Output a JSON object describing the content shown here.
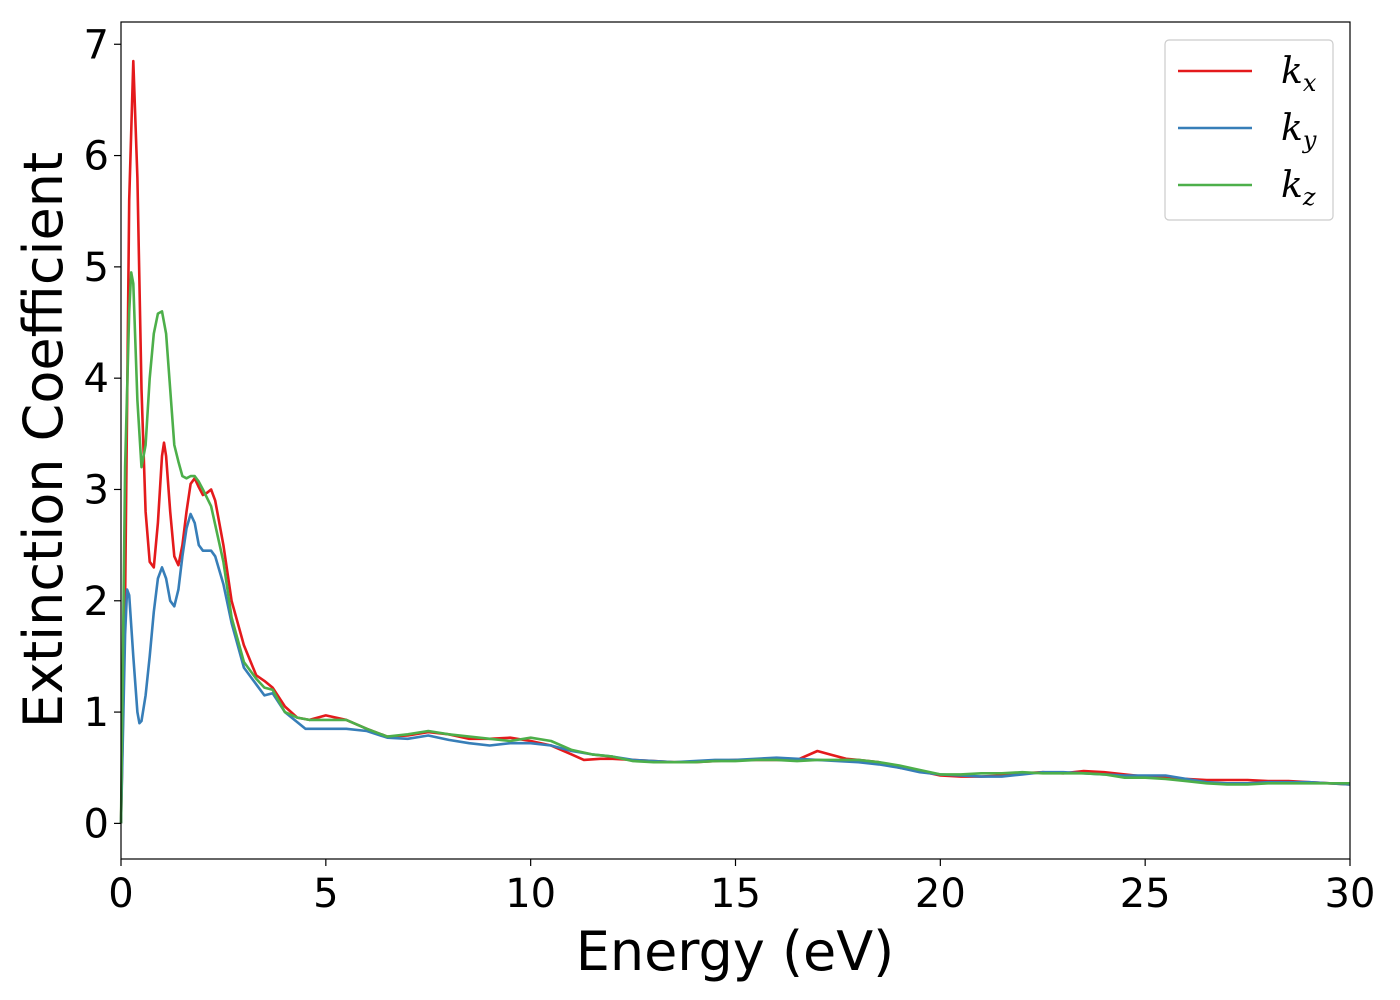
{
  "chart_data": {
    "type": "line",
    "xlabel": "Energy (eV)",
    "ylabel": "Extinction Coefficient",
    "xlim": [
      0,
      30
    ],
    "ylim": [
      -0.32,
      7.2
    ],
    "xticks": [
      "0",
      "5",
      "10",
      "15",
      "20",
      "25",
      "30"
    ],
    "yticks": [
      "0",
      "1",
      "2",
      "3",
      "4",
      "5",
      "6",
      "7"
    ],
    "grid": false,
    "legend_position": "top-right",
    "series": [
      {
        "name": "k_x",
        "label_main": "k",
        "label_sub": "x",
        "color": "#e41a1c",
        "points": [
          [
            0,
            0
          ],
          [
            0.1,
            2.0
          ],
          [
            0.2,
            5.6
          ],
          [
            0.3,
            6.85
          ],
          [
            0.4,
            5.8
          ],
          [
            0.5,
            3.9
          ],
          [
            0.6,
            2.8
          ],
          [
            0.7,
            2.35
          ],
          [
            0.8,
            2.3
          ],
          [
            0.9,
            2.7
          ],
          [
            1.0,
            3.3
          ],
          [
            1.05,
            3.42
          ],
          [
            1.1,
            3.3
          ],
          [
            1.2,
            2.8
          ],
          [
            1.3,
            2.4
          ],
          [
            1.4,
            2.32
          ],
          [
            1.5,
            2.5
          ],
          [
            1.6,
            2.8
          ],
          [
            1.7,
            3.05
          ],
          [
            1.8,
            3.1
          ],
          [
            1.9,
            3.02
          ],
          [
            2.0,
            2.95
          ],
          [
            2.1,
            2.97
          ],
          [
            2.2,
            3.0
          ],
          [
            2.3,
            2.9
          ],
          [
            2.5,
            2.5
          ],
          [
            2.7,
            2.0
          ],
          [
            3.0,
            1.6
          ],
          [
            3.3,
            1.33
          ],
          [
            3.5,
            1.28
          ],
          [
            3.7,
            1.22
          ],
          [
            4.0,
            1.05
          ],
          [
            4.3,
            0.95
          ],
          [
            4.6,
            0.93
          ],
          [
            5.0,
            0.97
          ],
          [
            5.5,
            0.93
          ],
          [
            6.0,
            0.85
          ],
          [
            6.5,
            0.78
          ],
          [
            7.0,
            0.79
          ],
          [
            7.5,
            0.82
          ],
          [
            8.0,
            0.8
          ],
          [
            8.5,
            0.76
          ],
          [
            9.0,
            0.76
          ],
          [
            9.5,
            0.77
          ],
          [
            10.0,
            0.74
          ],
          [
            10.5,
            0.7
          ],
          [
            11.0,
            0.62
          ],
          [
            11.3,
            0.57
          ],
          [
            11.7,
            0.58
          ],
          [
            12.0,
            0.58
          ],
          [
            12.5,
            0.57
          ],
          [
            13.0,
            0.56
          ],
          [
            13.5,
            0.55
          ],
          [
            14.0,
            0.55
          ],
          [
            14.5,
            0.56
          ],
          [
            15.0,
            0.57
          ],
          [
            15.5,
            0.57
          ],
          [
            16.0,
            0.57
          ],
          [
            16.5,
            0.57
          ],
          [
            17.0,
            0.65
          ],
          [
            17.3,
            0.62
          ],
          [
            17.7,
            0.58
          ],
          [
            18.0,
            0.57
          ],
          [
            18.5,
            0.55
          ],
          [
            19.0,
            0.5
          ],
          [
            19.5,
            0.47
          ],
          [
            20.0,
            0.43
          ],
          [
            20.5,
            0.42
          ],
          [
            21.0,
            0.42
          ],
          [
            21.5,
            0.43
          ],
          [
            22.0,
            0.45
          ],
          [
            22.5,
            0.46
          ],
          [
            23.0,
            0.45
          ],
          [
            23.5,
            0.47
          ],
          [
            24.0,
            0.46
          ],
          [
            24.5,
            0.44
          ],
          [
            25.0,
            0.42
          ],
          [
            25.5,
            0.41
          ],
          [
            26.0,
            0.4
          ],
          [
            26.5,
            0.39
          ],
          [
            27.0,
            0.39
          ],
          [
            27.5,
            0.39
          ],
          [
            28.0,
            0.38
          ],
          [
            28.5,
            0.38
          ],
          [
            29.0,
            0.37
          ],
          [
            29.5,
            0.36
          ],
          [
            30.0,
            0.35
          ]
        ]
      },
      {
        "name": "k_y",
        "label_main": "k",
        "label_sub": "y",
        "color": "#377eb8",
        "points": [
          [
            0,
            0
          ],
          [
            0.1,
            1.7
          ],
          [
            0.15,
            2.1
          ],
          [
            0.2,
            2.05
          ],
          [
            0.3,
            1.5
          ],
          [
            0.4,
            1.0
          ],
          [
            0.45,
            0.9
          ],
          [
            0.5,
            0.92
          ],
          [
            0.6,
            1.15
          ],
          [
            0.7,
            1.5
          ],
          [
            0.8,
            1.9
          ],
          [
            0.9,
            2.2
          ],
          [
            1.0,
            2.3
          ],
          [
            1.1,
            2.2
          ],
          [
            1.2,
            2.0
          ],
          [
            1.3,
            1.95
          ],
          [
            1.4,
            2.1
          ],
          [
            1.5,
            2.4
          ],
          [
            1.6,
            2.65
          ],
          [
            1.7,
            2.78
          ],
          [
            1.8,
            2.7
          ],
          [
            1.9,
            2.5
          ],
          [
            2.0,
            2.45
          ],
          [
            2.2,
            2.45
          ],
          [
            2.3,
            2.4
          ],
          [
            2.5,
            2.15
          ],
          [
            2.7,
            1.8
          ],
          [
            3.0,
            1.4
          ],
          [
            3.3,
            1.25
          ],
          [
            3.5,
            1.15
          ],
          [
            3.7,
            1.17
          ],
          [
            4.0,
            1.0
          ],
          [
            4.5,
            0.85
          ],
          [
            5.0,
            0.85
          ],
          [
            5.5,
            0.85
          ],
          [
            6.0,
            0.83
          ],
          [
            6.5,
            0.77
          ],
          [
            7.0,
            0.76
          ],
          [
            7.5,
            0.79
          ],
          [
            8.0,
            0.75
          ],
          [
            8.5,
            0.72
          ],
          [
            9.0,
            0.7
          ],
          [
            9.5,
            0.72
          ],
          [
            10.0,
            0.72
          ],
          [
            10.5,
            0.7
          ],
          [
            11.0,
            0.65
          ],
          [
            11.5,
            0.62
          ],
          [
            12.0,
            0.6
          ],
          [
            12.5,
            0.57
          ],
          [
            13.0,
            0.56
          ],
          [
            13.5,
            0.55
          ],
          [
            14.0,
            0.56
          ],
          [
            14.5,
            0.57
          ],
          [
            15.0,
            0.57
          ],
          [
            15.5,
            0.58
          ],
          [
            16.0,
            0.59
          ],
          [
            16.5,
            0.58
          ],
          [
            17.0,
            0.57
          ],
          [
            17.5,
            0.56
          ],
          [
            18.0,
            0.55
          ],
          [
            18.5,
            0.53
          ],
          [
            19.0,
            0.5
          ],
          [
            19.5,
            0.46
          ],
          [
            20.0,
            0.44
          ],
          [
            20.5,
            0.43
          ],
          [
            21.0,
            0.42
          ],
          [
            21.5,
            0.42
          ],
          [
            22.0,
            0.44
          ],
          [
            22.5,
            0.46
          ],
          [
            23.0,
            0.46
          ],
          [
            23.5,
            0.45
          ],
          [
            24.0,
            0.44
          ],
          [
            24.5,
            0.43
          ],
          [
            25.0,
            0.43
          ],
          [
            25.5,
            0.43
          ],
          [
            26.0,
            0.4
          ],
          [
            26.5,
            0.37
          ],
          [
            27.0,
            0.36
          ],
          [
            27.5,
            0.36
          ],
          [
            28.0,
            0.37
          ],
          [
            28.5,
            0.37
          ],
          [
            29.0,
            0.37
          ],
          [
            29.5,
            0.36
          ],
          [
            30.0,
            0.35
          ]
        ]
      },
      {
        "name": "k_z",
        "label_main": "k",
        "label_sub": "z",
        "color": "#4daf4a",
        "points": [
          [
            0,
            0
          ],
          [
            0.1,
            3.2
          ],
          [
            0.2,
            4.6
          ],
          [
            0.25,
            4.95
          ],
          [
            0.3,
            4.85
          ],
          [
            0.4,
            3.8
          ],
          [
            0.5,
            3.2
          ],
          [
            0.6,
            3.4
          ],
          [
            0.7,
            4.0
          ],
          [
            0.8,
            4.4
          ],
          [
            0.9,
            4.58
          ],
          [
            1.0,
            4.6
          ],
          [
            1.1,
            4.4
          ],
          [
            1.2,
            3.9
          ],
          [
            1.3,
            3.4
          ],
          [
            1.4,
            3.25
          ],
          [
            1.5,
            3.12
          ],
          [
            1.6,
            3.1
          ],
          [
            1.7,
            3.12
          ],
          [
            1.8,
            3.12
          ],
          [
            1.9,
            3.07
          ],
          [
            2.0,
            3.0
          ],
          [
            2.2,
            2.85
          ],
          [
            2.5,
            2.35
          ],
          [
            2.7,
            1.85
          ],
          [
            3.0,
            1.45
          ],
          [
            3.3,
            1.3
          ],
          [
            3.5,
            1.22
          ],
          [
            3.7,
            1.2
          ],
          [
            4.0,
            1.0
          ],
          [
            4.3,
            0.95
          ],
          [
            4.6,
            0.93
          ],
          [
            5.0,
            0.93
          ],
          [
            5.5,
            0.93
          ],
          [
            6.0,
            0.85
          ],
          [
            6.5,
            0.78
          ],
          [
            7.0,
            0.8
          ],
          [
            7.5,
            0.83
          ],
          [
            8.0,
            0.8
          ],
          [
            8.5,
            0.78
          ],
          [
            9.0,
            0.76
          ],
          [
            9.5,
            0.74
          ],
          [
            10.0,
            0.77
          ],
          [
            10.5,
            0.74
          ],
          [
            11.0,
            0.66
          ],
          [
            11.5,
            0.62
          ],
          [
            12.0,
            0.6
          ],
          [
            12.5,
            0.56
          ],
          [
            13.0,
            0.55
          ],
          [
            13.5,
            0.55
          ],
          [
            14.0,
            0.55
          ],
          [
            14.5,
            0.56
          ],
          [
            15.0,
            0.56
          ],
          [
            15.5,
            0.57
          ],
          [
            16.0,
            0.57
          ],
          [
            16.5,
            0.56
          ],
          [
            17.0,
            0.57
          ],
          [
            17.5,
            0.57
          ],
          [
            18.0,
            0.57
          ],
          [
            18.5,
            0.55
          ],
          [
            19.0,
            0.52
          ],
          [
            19.5,
            0.48
          ],
          [
            20.0,
            0.44
          ],
          [
            20.5,
            0.44
          ],
          [
            21.0,
            0.45
          ],
          [
            21.5,
            0.45
          ],
          [
            22.0,
            0.46
          ],
          [
            22.5,
            0.45
          ],
          [
            23.0,
            0.45
          ],
          [
            23.5,
            0.45
          ],
          [
            24.0,
            0.44
          ],
          [
            24.5,
            0.41
          ],
          [
            25.0,
            0.41
          ],
          [
            25.5,
            0.4
          ],
          [
            26.0,
            0.38
          ],
          [
            26.5,
            0.36
          ],
          [
            27.0,
            0.35
          ],
          [
            27.5,
            0.35
          ],
          [
            28.0,
            0.36
          ],
          [
            28.5,
            0.36
          ],
          [
            29.0,
            0.36
          ],
          [
            29.5,
            0.36
          ],
          [
            30.0,
            0.36
          ]
        ]
      }
    ]
  }
}
